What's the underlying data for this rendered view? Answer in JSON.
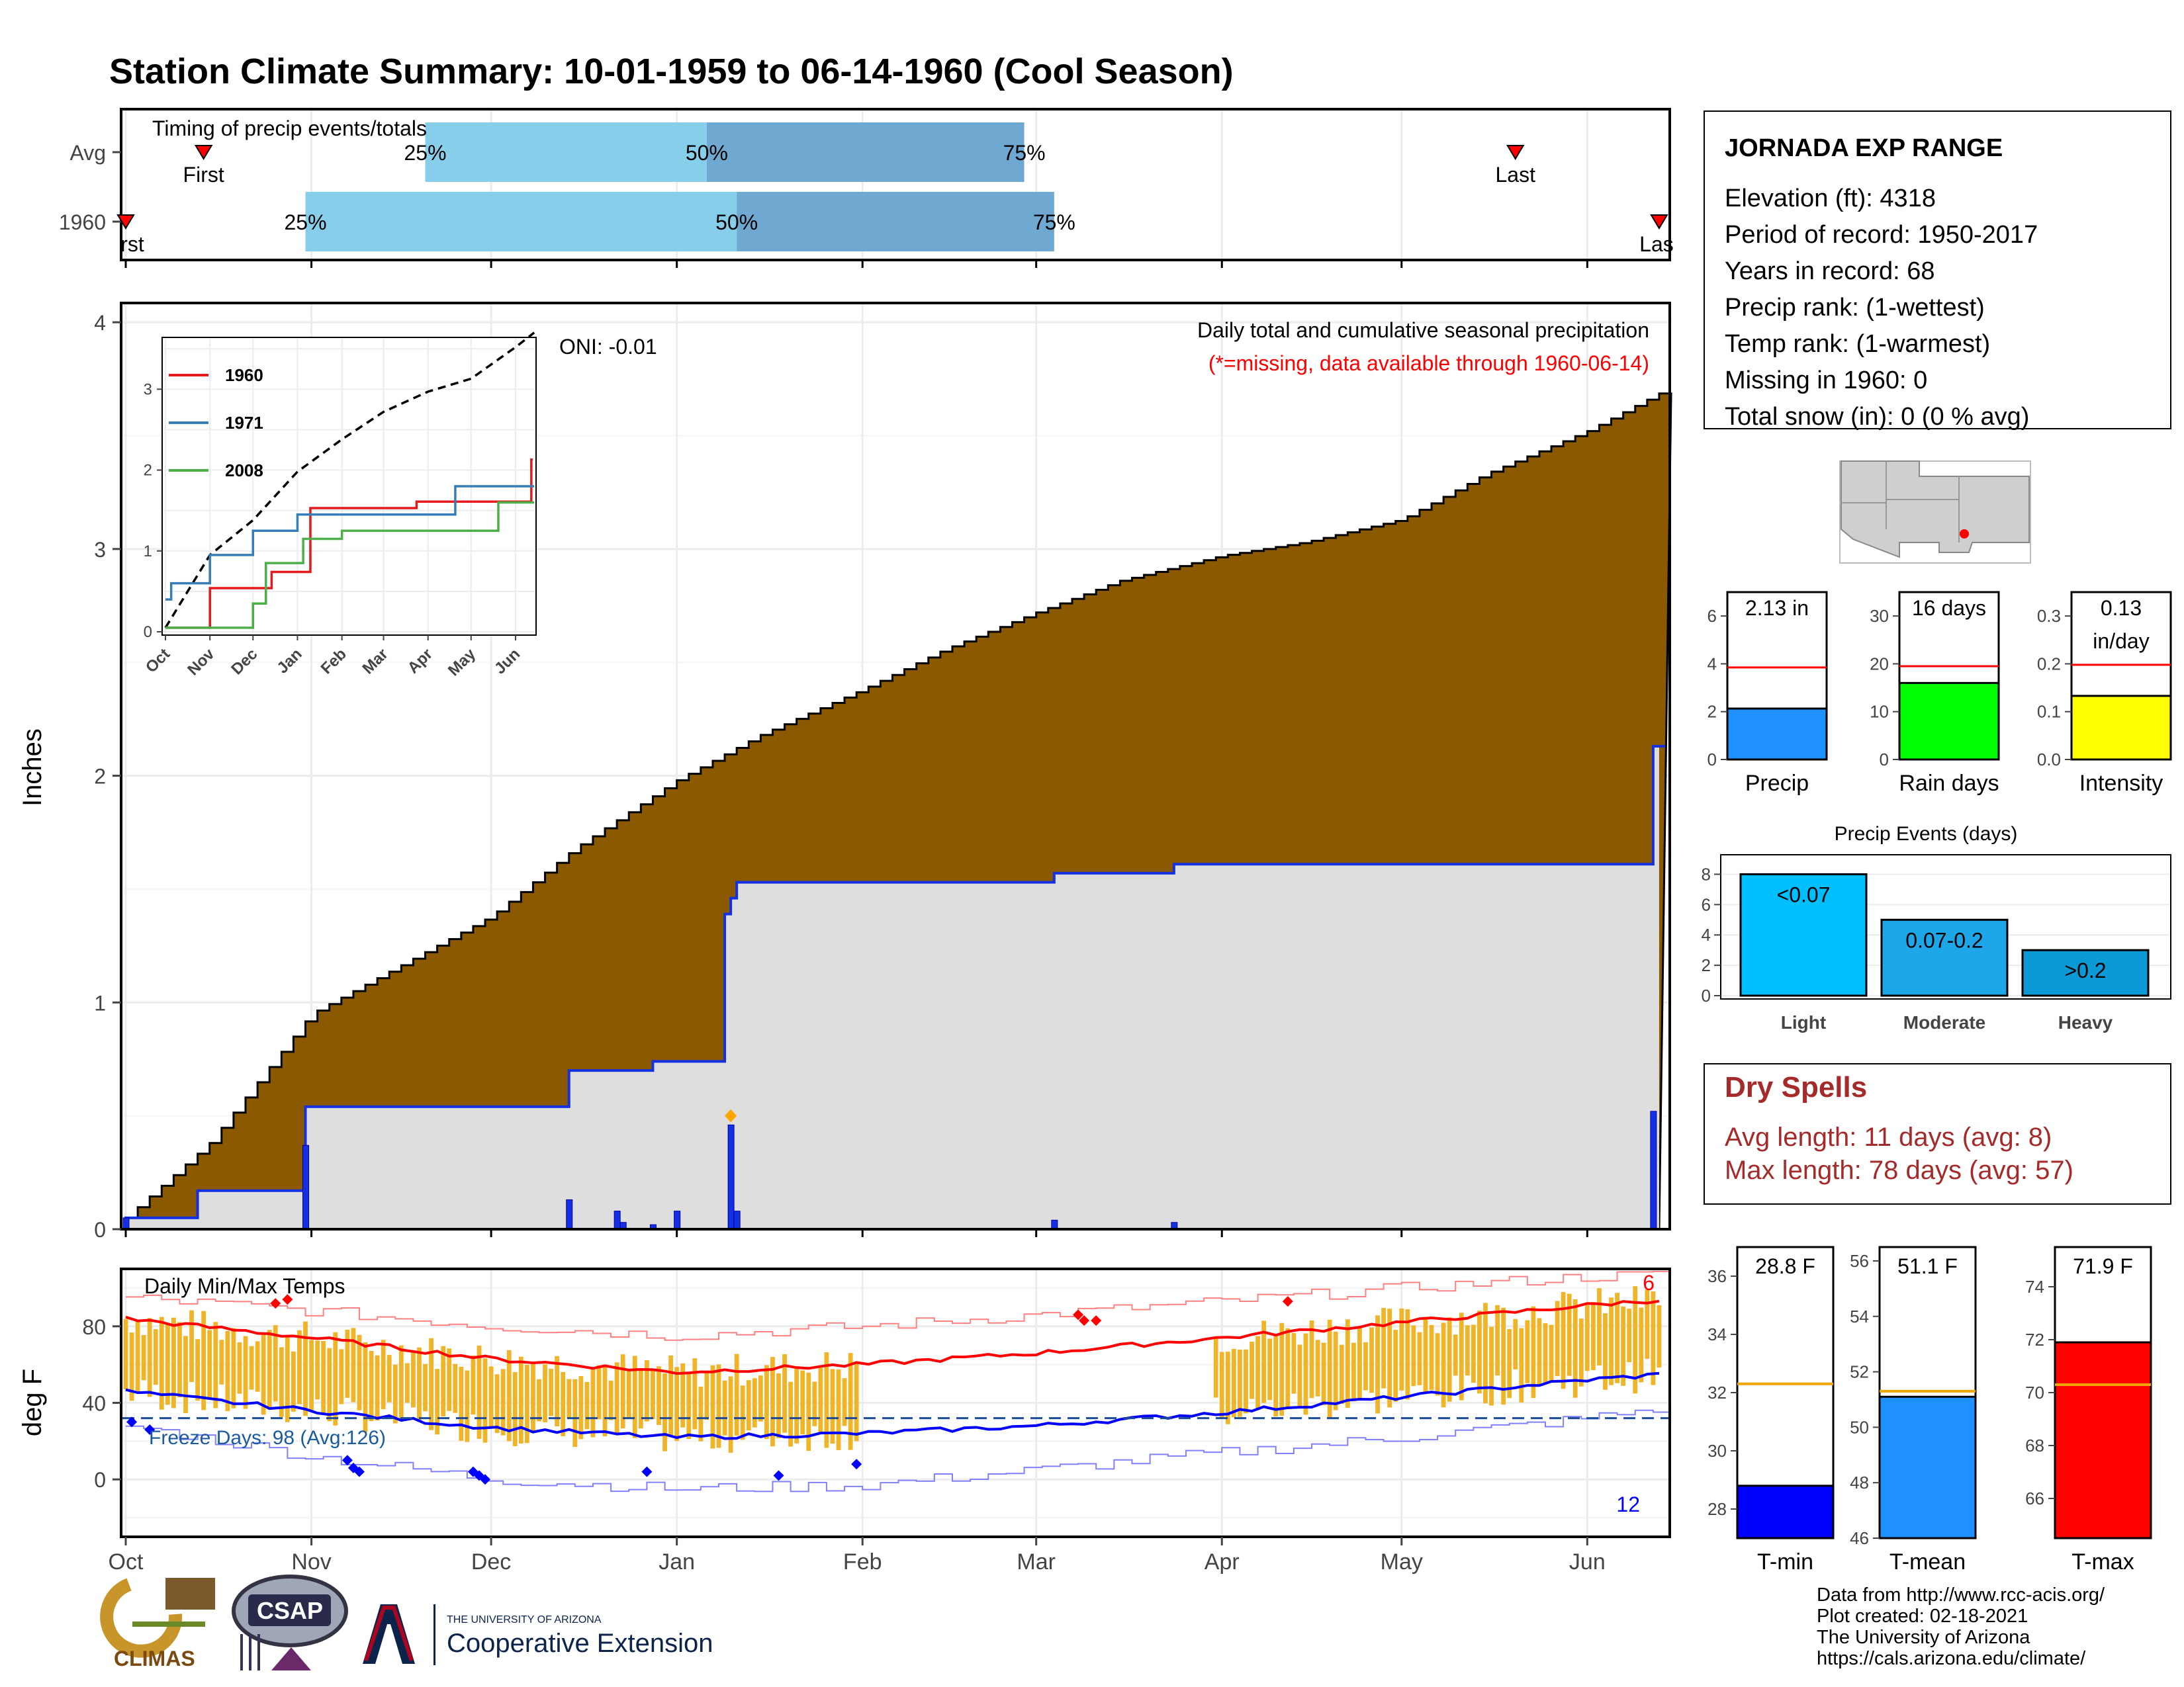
{
  "title": "Station Climate Summary: 10-01-1959 to 06-14-1960 (Cool Season)",
  "colors": {
    "title": "#2a3f8a",
    "cum_fill": "#8b5a00",
    "light_gray": "#dedede",
    "blue": "#1530e0",
    "red": "#ff0000",
    "orange": "#f0a500",
    "light_blue": "#87ceeb",
    "mid_blue": "#6fa8d0",
    "dry_spell": "#a52a2a"
  },
  "timing": {
    "title": "Timing of precip events/totals",
    "rows": [
      {
        "label": "Avg",
        "bar_start": "Nov 20",
        "mid": "Jan 6",
        "bar_end": "Feb 28",
        "p25": "25%",
        "p50": "50%",
        "p75": "75%",
        "first": "First",
        "last": "Last",
        "first_date": "Oct 14",
        "last_date": "May 20"
      },
      {
        "label": "1960",
        "bar_start": "Oct 31",
        "mid": "Jan 11",
        "bar_end": "Mar 4",
        "p25": "25%",
        "p50": "50%",
        "p75": "75%",
        "first": "rst",
        "last": "Las",
        "first_date": "Oct 1",
        "last_date": "Jun 13"
      }
    ]
  },
  "precip_panel": {
    "ylabel": "Inches",
    "yticks": [
      "0",
      "1",
      "2",
      "3",
      "4"
    ],
    "note_line1": "Daily total and cumulative seasonal precipitation",
    "note_line2": "(*=missing, data available through 1960-06-14)",
    "oni": "ONI: -0.01"
  },
  "inset": {
    "yticks": [
      "0",
      "1",
      "2",
      "3"
    ],
    "xticks": [
      "Oct",
      "Nov",
      "Dec",
      "Jan",
      "Feb",
      "Mar",
      "Apr",
      "May",
      "Jun"
    ],
    "legend": [
      "1960",
      "1971",
      "2008"
    ]
  },
  "temp_panel": {
    "ylabel": "deg F",
    "title": "Daily Min/Max Temps",
    "yticks": [
      "0",
      "40",
      "80"
    ],
    "freeze_text": "Freeze Days: 98 (Avg:126)",
    "count_high": "6",
    "count_low": "12",
    "xticks": [
      "Oct",
      "Nov",
      "Dec",
      "Jan",
      "Feb",
      "Mar",
      "Apr",
      "May",
      "Jun"
    ]
  },
  "station": {
    "name": "JORNADA EXP RANGE",
    "lines": [
      "Elevation (ft): 4318",
      "Period of record: 1950-2017",
      "Years in record: 68",
      "Precip rank:  (1-wettest)",
      "Temp rank:  (1-warmest)",
      "Missing in 1960: 0",
      "Total snow (in): 0 (0 % avg)"
    ]
  },
  "mini_bars": [
    {
      "label": "Precip",
      "value_text": "2.13 in",
      "value": 2.13,
      "avg": 3.85,
      "ymax": 7,
      "yticks": [
        "0",
        "2",
        "4",
        "6"
      ],
      "tickvals": [
        0,
        2,
        4,
        6
      ],
      "color": "#1e90ff"
    },
    {
      "label": "Rain days",
      "value_text": "16 days",
      "value": 16,
      "avg": 19.5,
      "ymax": 35,
      "yticks": [
        "0",
        "10",
        "20",
        "30"
      ],
      "tickvals": [
        0,
        10,
        20,
        30
      ],
      "color": "#00ff00"
    },
    {
      "label": "Intensity",
      "value_text": "0.13\nin/day",
      "value": 0.133,
      "avg": 0.198,
      "ymax": 0.35,
      "yticks": [
        "0.0",
        "0.1",
        "0.2",
        "0.3"
      ],
      "tickvals": [
        0,
        0.1,
        0.2,
        0.3
      ],
      "color": "#ffff00"
    }
  ],
  "events": {
    "title": "Precip Events (days)",
    "yticks": [
      "0",
      "2",
      "4",
      "6",
      "8"
    ],
    "bars": [
      {
        "label": "Light",
        "text": "<0.07",
        "value": 8,
        "color": "#00bfff"
      },
      {
        "label": "Moderate",
        "text": "0.07-0.2",
        "value": 5,
        "color": "#1ea7e8"
      },
      {
        "label": "Heavy",
        "text": ">0.2",
        "value": 3,
        "color": "#0b9ad6"
      }
    ]
  },
  "dry_spells": {
    "title": "Dry Spells",
    "avg": "Avg length: 11 days (avg: 8)",
    "max": "Max length: 78 days (avg: 57)"
  },
  "temp_bars": [
    {
      "label": "T-min",
      "value_text": "28.8 F",
      "value": 28.8,
      "avg": 32.3,
      "ymin": 27,
      "ymax": 37,
      "yticks": [
        "28",
        "30",
        "32",
        "34",
        "36"
      ],
      "tickvals": [
        28,
        30,
        32,
        34,
        36
      ],
      "color": "#0000ff"
    },
    {
      "label": "T-mean",
      "value_text": "51.1 F",
      "value": 51.1,
      "avg": 51.3,
      "ymin": 46,
      "ymax": 56.5,
      "yticks": [
        "46",
        "48",
        "50",
        "52",
        "54",
        "56"
      ],
      "tickvals": [
        46,
        48,
        50,
        52,
        54,
        56
      ],
      "color": "#1e90ff"
    },
    {
      "label": "T-max",
      "value_text": "71.9 F",
      "value": 71.9,
      "avg": 70.3,
      "ymin": 64.5,
      "ymax": 75.5,
      "yticks": [
        "66",
        "68",
        "70",
        "72",
        "74"
      ],
      "tickvals": [
        66,
        68,
        70,
        72,
        74
      ],
      "color": "#ff0000"
    }
  ],
  "footer": {
    "credits": [
      "Data from http://www.rcc-acis.org/",
      "Plot created: 02-18-2021",
      "The University of Arizona",
      "https://cals.arizona.edu/climate/"
    ],
    "climas": "CLIMAS",
    "csap": "CSAP",
    "ua_small": "THE UNIVERSITY OF ARIZONA",
    "ua_big": "Cooperative Extension"
  },
  "chart_data": [
    {
      "type": "area",
      "title": "Daily total and cumulative seasonal precipitation",
      "ylabel": "Inches",
      "ylim": [
        0,
        4.05
      ],
      "series": [
        {
          "name": "cumulative_average",
          "x": [
            "Oct 1",
            "Oct 15",
            "Nov 1",
            "Nov 15",
            "Dec 1",
            "Dec 15",
            "Jan 1",
            "Jan 15",
            "Feb 1",
            "Feb 15",
            "Mar 1",
            "Mar 15",
            "Apr 1",
            "Apr 15",
            "May 1",
            "May 15",
            "Jun 1",
            "Jun 14"
          ],
          "values": [
            0.05,
            0.38,
            0.95,
            1.15,
            1.38,
            1.68,
            1.98,
            2.18,
            2.38,
            2.56,
            2.72,
            2.86,
            2.97,
            3.03,
            3.13,
            3.33,
            3.52,
            3.7
          ]
        },
        {
          "name": "1960_cumulative",
          "x": [
            "Oct 1",
            "Oct 13",
            "Oct 31",
            "Dec 14",
            "Dec 28",
            "Jan 9",
            "Jan 10",
            "Jan 11",
            "Mar 4",
            "Mar 24",
            "Jun 12",
            "Jun 14"
          ],
          "values": [
            0.05,
            0.17,
            0.54,
            0.7,
            0.74,
            1.39,
            1.46,
            1.53,
            1.57,
            1.61,
            2.13,
            2.13
          ]
        },
        {
          "name": "daily_precip",
          "x": [
            "Oct 1",
            "Oct 31",
            "Dec 14",
            "Dec 22",
            "Dec 23",
            "Dec 28",
            "Jan 1",
            "Jan 10",
            "Jan 11",
            "Mar 4",
            "Mar 24",
            "Jun 12"
          ],
          "values": [
            0.05,
            0.37,
            0.13,
            0.08,
            0.03,
            0.02,
            0.08,
            0.46,
            0.08,
            0.04,
            0.03,
            0.52
          ]
        }
      ]
    },
    {
      "type": "line",
      "title": "Inset cumulative precipitation",
      "ylim": [
        0,
        3.6
      ],
      "series": [
        {
          "name": "Average",
          "x": [
            "Oct 1",
            "Nov 1",
            "Dec 1",
            "Jan 1",
            "Feb 1",
            "Mar 1",
            "Apr 1",
            "May 1",
            "Jun 1",
            "Jun 14"
          ],
          "values": [
            0.05,
            0.95,
            1.38,
            1.98,
            2.38,
            2.72,
            2.97,
            3.13,
            3.52,
            3.7
          ]
        },
        {
          "name": "1960",
          "x": [
            "Oct 1",
            "Nov 1",
            "Dec 14",
            "Jan 10",
            "Mar 24",
            "Jun 12"
          ],
          "values": [
            0.05,
            0.54,
            0.74,
            1.53,
            1.61,
            2.13
          ]
        },
        {
          "name": "1971",
          "x": [
            "Oct 1",
            "Oct 5",
            "Nov 1",
            "Dec 1",
            "Jan 1",
            "Apr 20",
            "Jun 14"
          ],
          "values": [
            0.4,
            0.6,
            0.95,
            1.25,
            1.45,
            1.8,
            1.8
          ]
        },
        {
          "name": "2008",
          "x": [
            "Oct 1",
            "Dec 1",
            "Dec 10",
            "Jan 5",
            "Feb 1",
            "May 20",
            "Jun 14"
          ],
          "values": [
            0.05,
            0.35,
            0.85,
            1.15,
            1.25,
            1.6,
            1.6
          ]
        }
      ]
    },
    {
      "type": "line",
      "title": "Daily Min/Max Temps",
      "ylabel": "deg F",
      "ylim": [
        -30,
        110
      ],
      "series": [
        {
          "name": "avg_max",
          "x": [
            "Oct 1",
            "Nov 1",
            "Dec 1",
            "Jan 1",
            "Feb 1",
            "Mar 1",
            "Apr 1",
            "May 1",
            "Jun 1",
            "Jun 14"
          ],
          "values": [
            84,
            74,
            63,
            56,
            60,
            66,
            74,
            82,
            91,
            94
          ]
        },
        {
          "name": "avg_min",
          "x": [
            "Oct 1",
            "Nov 1",
            "Dec 1",
            "Jan 1",
            "Feb 1",
            "Mar 1",
            "Apr 1",
            "May 1",
            "Jun 1",
            "Jun 14"
          ],
          "values": [
            46,
            36,
            27,
            22,
            24,
            28,
            35,
            43,
            52,
            55
          ]
        },
        {
          "name": "record_high",
          "x": [
            "Oct 1",
            "Nov 1",
            "Dec 1",
            "Jan 1",
            "Feb 1",
            "Mar 1",
            "Apr 1",
            "May 1",
            "Jun 1",
            "Jun 14"
          ],
          "values": [
            95,
            88,
            80,
            75,
            80,
            86,
            93,
            100,
            106,
            107
          ]
        },
        {
          "name": "record_low",
          "x": [
            "Oct 1",
            "Nov 1",
            "Dec 1",
            "Jan 1",
            "Feb 1",
            "Mar 1",
            "Apr 1",
            "May 1",
            "Jun 1",
            "Jun 14"
          ],
          "values": [
            28,
            12,
            0,
            -5,
            -3,
            5,
            14,
            22,
            32,
            38
          ]
        },
        {
          "name": "freeze_line",
          "x": [
            "Oct 1",
            "Jun 14"
          ],
          "values": [
            32,
            32
          ]
        }
      ]
    }
  ]
}
